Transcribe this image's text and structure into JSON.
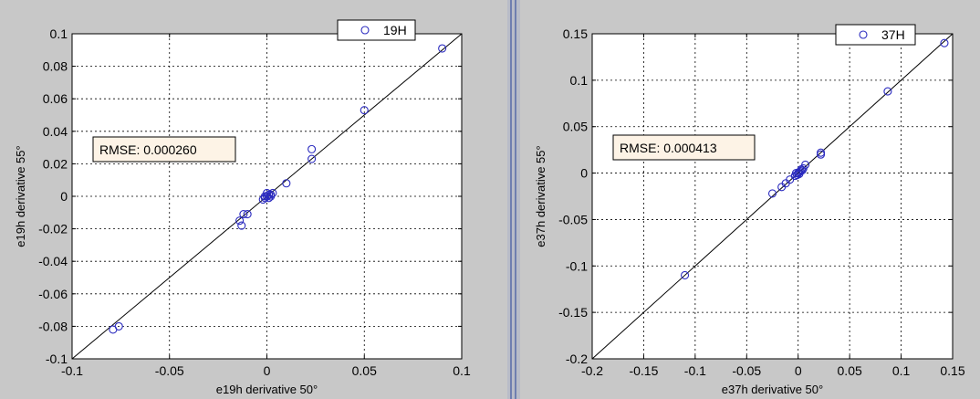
{
  "colors": {
    "figure_background": "#c8c8c8",
    "axes_background": "#ffffff",
    "marker": "#2b2bbf",
    "reference_line": "#000000",
    "rmse_box_fill": "#fdf3e6",
    "splitter": "#6f7fb0"
  },
  "chart_data": [
    {
      "type": "scatter",
      "title": "",
      "xlabel": "e19h derivative 50°",
      "ylabel": "e19h derivative 55°",
      "xlim": [
        -0.1,
        0.1
      ],
      "ylim": [
        -0.1,
        0.1
      ],
      "xticks": [
        -0.1,
        -0.05,
        0,
        0.05,
        0.1
      ],
      "xtick_labels": [
        "-0.1",
        "-0.05",
        "0",
        "0.05",
        "0.1"
      ],
      "yticks": [
        -0.1,
        -0.08,
        -0.06,
        -0.04,
        -0.02,
        0,
        0.02,
        0.04,
        0.06,
        0.08,
        0.1
      ],
      "ytick_labels": [
        "-0.1",
        "-0.08",
        "-0.06",
        "-0.04",
        "-0.02",
        "0",
        "0.02",
        "0.04",
        "0.06",
        "0.08",
        "0.1"
      ],
      "grid": true,
      "grid_style": "dotted",
      "legend_position": "top-right",
      "reference_line": "y = x",
      "annotation": "RMSE: 0.000260",
      "series": [
        {
          "name": "19H",
          "marker": "open-circle",
          "points": [
            [
              0.09,
              0.091
            ],
            [
              0.05,
              0.053
            ],
            [
              0.023,
              0.029
            ],
            [
              0.023,
              0.023
            ],
            [
              0.01,
              0.008
            ],
            [
              -0.076,
              -0.08
            ],
            [
              -0.079,
              -0.082
            ],
            [
              -0.014,
              -0.015
            ],
            [
              -0.013,
              -0.018
            ],
            [
              -0.012,
              -0.011
            ],
            [
              -0.01,
              -0.011
            ],
            [
              0.0,
              0.0
            ],
            [
              0.001,
              0.001
            ],
            [
              0.002,
              0.001
            ],
            [
              -0.001,
              -0.001
            ],
            [
              0.001,
              -0.001
            ],
            [
              0.003,
              0.002
            ],
            [
              -0.002,
              -0.002
            ],
            [
              0.0,
              0.002
            ],
            [
              0.002,
              0.0
            ],
            [
              -0.001,
              0.0
            ]
          ]
        }
      ]
    },
    {
      "type": "scatter",
      "title": "",
      "xlabel": "e37h derivative 50°",
      "ylabel": "e37h derivative 55°",
      "xlim": [
        -0.2,
        0.15
      ],
      "ylim": [
        -0.2,
        0.15
      ],
      "xticks": [
        -0.2,
        -0.15,
        -0.1,
        -0.05,
        0,
        0.05,
        0.1,
        0.15
      ],
      "xtick_labels": [
        "-0.2",
        "-0.15",
        "-0.1",
        "-0.05",
        "0",
        "0.05",
        "0.1",
        "0.15"
      ],
      "yticks": [
        -0.2,
        -0.15,
        -0.1,
        -0.05,
        0,
        0.05,
        0.1,
        0.15
      ],
      "ytick_labels": [
        "-0.2",
        "-0.15",
        "-0.1",
        "-0.05",
        "0",
        "0.05",
        "0.1",
        "0.15"
      ],
      "grid": true,
      "grid_style": "dotted",
      "legend_position": "top-right",
      "reference_line": "y = x",
      "annotation": "RMSE: 0.000413",
      "series": [
        {
          "name": "37H",
          "marker": "open-circle",
          "points": [
            [
              0.142,
              0.14
            ],
            [
              0.087,
              0.088
            ],
            [
              0.022,
              0.022
            ],
            [
              0.022,
              0.02
            ],
            [
              0.007,
              0.009
            ],
            [
              -0.11,
              -0.11
            ],
            [
              -0.025,
              -0.022
            ],
            [
              -0.016,
              -0.015
            ],
            [
              -0.012,
              -0.011
            ],
            [
              -0.008,
              -0.007
            ],
            [
              -0.003,
              -0.003
            ],
            [
              -0.001,
              -0.002
            ],
            [
              0.0,
              0.0
            ],
            [
              0.001,
              0.001
            ],
            [
              0.002,
              0.002
            ],
            [
              0.003,
              0.004
            ],
            [
              0.004,
              0.003
            ],
            [
              -0.002,
              0.0
            ],
            [
              0.001,
              -0.001
            ],
            [
              0.005,
              0.005
            ]
          ]
        }
      ]
    }
  ]
}
